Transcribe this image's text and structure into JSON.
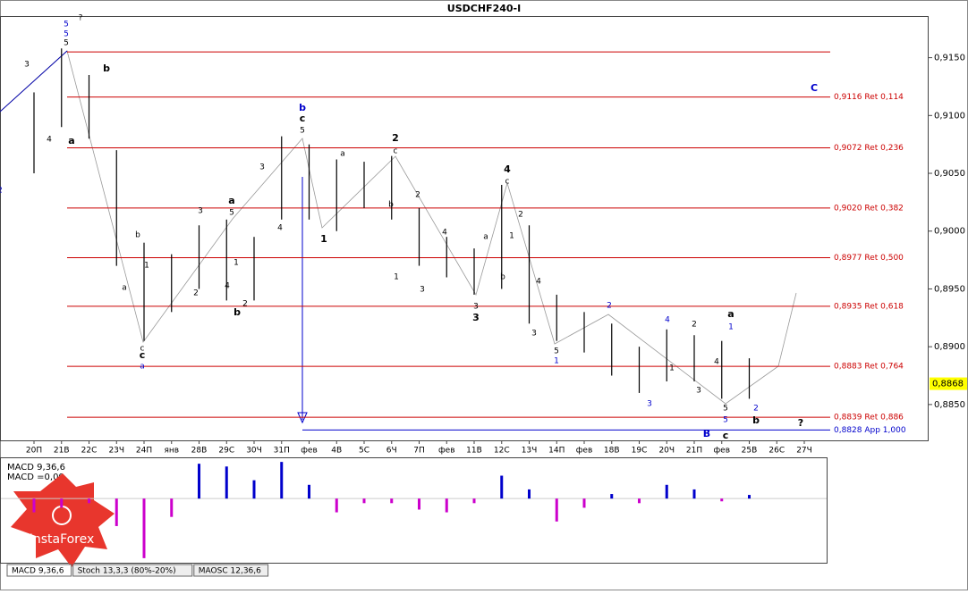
{
  "chart_data": [
    {
      "type": "ohlc",
      "title": "USDCHF240-I",
      "categories": [
        "20П",
        "21В",
        "22С",
        "23Ч",
        "24П",
        "янв",
        "28В",
        "29С",
        "30Ч",
        "31П",
        "фев",
        "4В",
        "5С",
        "6Ч",
        "7П",
        "фев",
        "11В",
        "12С",
        "13Ч",
        "14П",
        "фев",
        "18В",
        "19С",
        "20Ч",
        "21П",
        "фев",
        "25В",
        "26С",
        "27Ч"
      ],
      "high": [
        0.912,
        0.9158,
        0.9135,
        0.907,
        0.899,
        0.898,
        0.9005,
        0.901,
        0.8995,
        0.9082,
        0.9075,
        0.9062,
        0.906,
        0.9065,
        0.902,
        0.8995,
        0.8985,
        0.904,
        0.9005,
        0.8945,
        0.893,
        0.892,
        0.89,
        0.8915,
        0.891,
        0.8905,
        0.889,
        null,
        null
      ],
      "low": [
        0.905,
        0.909,
        0.908,
        0.897,
        0.8905,
        0.893,
        0.895,
        0.894,
        0.894,
        0.901,
        0.901,
        0.9,
        0.902,
        0.901,
        0.897,
        0.896,
        0.8945,
        0.895,
        0.892,
        0.8905,
        0.8895,
        0.8875,
        0.886,
        0.887,
        0.887,
        0.8855,
        0.8855,
        null,
        null
      ],
      "color": "#000000",
      "ylim": [
        0.8819,
        0.9186
      ],
      "yticks": [
        {
          "value": 0.915,
          "label": "0,9150"
        },
        {
          "value": 0.91,
          "label": "0,9100"
        },
        {
          "value": 0.905,
          "label": "0,9050"
        },
        {
          "value": 0.9,
          "label": "0,9000"
        },
        {
          "value": 0.895,
          "label": "0,8950"
        },
        {
          "value": 0.89,
          "label": "0,8900"
        },
        {
          "value": 0.885,
          "label": "0,8850"
        }
      ],
      "levels": [
        {
          "value": 0.9116,
          "label": "0,9116 Ret 0,114"
        },
        {
          "value": 0.9072,
          "label": "0,9072 Ret 0,236"
        },
        {
          "value": 0.902,
          "label": "0,9020 Ret 0,382"
        },
        {
          "value": 0.8977,
          "label": "0,8977 Ret 0,500"
        },
        {
          "value": 0.8935,
          "label": "0,8935 Ret 0,618"
        },
        {
          "value": 0.8883,
          "label": "0,8883 Ret 0,764"
        },
        {
          "value": 0.8839,
          "label": "0,8839 Ret 0,886"
        }
      ],
      "level_color": "#cc0000",
      "top_level": 0.9155,
      "projection": {
        "value": 0.8828,
        "label": "0,8828 App 1,000",
        "color": "#0000cc"
      },
      "current_price": {
        "value": 0.8868,
        "label": "0,8868"
      },
      "annotations": [
        "5",
        "5",
        "5",
        "?",
        "3",
        "b",
        "4",
        "a",
        "b",
        "1",
        "a",
        "c",
        "c",
        "a",
        "3",
        "a",
        "5",
        "2",
        "4",
        "1",
        "2",
        "b",
        "4",
        "3",
        "b",
        "c",
        "5",
        "a",
        "1",
        "2",
        "c",
        "b",
        "2",
        "1",
        "3",
        "4",
        "a",
        "b",
        "3",
        "3",
        "4",
        "c",
        "2",
        "1",
        "4",
        "3",
        "5",
        "1",
        "2",
        "3",
        "4",
        "1",
        "2",
        "3",
        "4",
        "a",
        "1",
        "5",
        "2",
        "5",
        "b",
        "c",
        "B",
        "?",
        "C",
        "2"
      ]
    },
    {
      "type": "histogram",
      "title": "MACD 9,36,6",
      "subtitle": "MACD =0,00",
      "values": [
        -15,
        -10,
        -5,
        -30,
        -65,
        -20,
        38,
        35,
        20,
        40,
        15,
        -15,
        -5,
        -5,
        -12,
        -15,
        -5,
        25,
        10,
        -25,
        -10,
        5,
        -5,
        15,
        10,
        -3,
        4,
        null,
        null
      ],
      "color": "#cc00cc",
      "color_up": "#0000cc",
      "ylim": [
        -70,
        45
      ],
      "tabs": [
        "MACD 9,36,6",
        "Stoch 13,3,3 (80%-20%)",
        "MAOSC 12,36,6"
      ]
    }
  ],
  "logo": "InstaForex"
}
